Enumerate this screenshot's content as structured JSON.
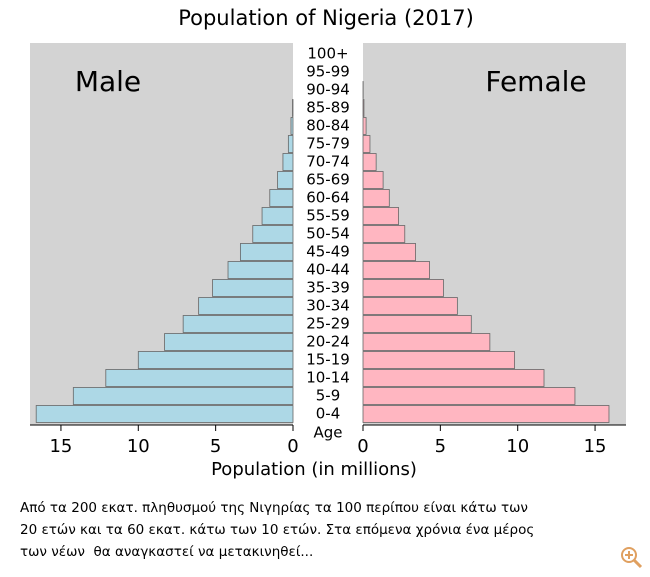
{
  "chart_data": {
    "type": "pyramid",
    "title": "Population of Nigeria (2017)",
    "categories": [
      "0-4",
      "5-9",
      "10-14",
      "15-19",
      "20-24",
      "25-29",
      "30-34",
      "35-39",
      "40-44",
      "45-49",
      "50-54",
      "55-59",
      "60-64",
      "65-69",
      "70-74",
      "75-79",
      "80-84",
      "85-89",
      "90-94",
      "95-99",
      "100+"
    ],
    "category_axis_label": "Age",
    "x_label": "Population (in millions)",
    "series": [
      {
        "name": "Male",
        "color": "#add8e6",
        "values": [
          16.6,
          14.2,
          12.1,
          10.0,
          8.3,
          7.1,
          6.1,
          5.2,
          4.2,
          3.4,
          2.6,
          2.0,
          1.5,
          1.0,
          0.65,
          0.3,
          0.13,
          0.03,
          0,
          0,
          0
        ]
      },
      {
        "name": "Female",
        "color": "#ffb6c1",
        "values": [
          15.9,
          13.7,
          11.7,
          9.8,
          8.2,
          7.0,
          6.1,
          5.2,
          4.3,
          3.4,
          2.7,
          2.3,
          1.7,
          1.3,
          0.85,
          0.45,
          0.2,
          0.06,
          0.01,
          0,
          0
        ]
      }
    ],
    "xlim": [
      0,
      17
    ],
    "xticks": [
      0,
      5,
      10,
      15
    ],
    "panel_color": "#d3d3d3"
  },
  "caption": [
    "Από τα 200 εκατ. πληθυσμού της Νιγηρίας τα 100 περίπου είναι κάτω των",
    "20 ετών και τα 60 εκατ. κάτω των 10 ετών. Στα επόμενα χρόνια ένα μέρος",
    "των νέων  θα αναγκαστεί να μετακινηθεί..."
  ]
}
